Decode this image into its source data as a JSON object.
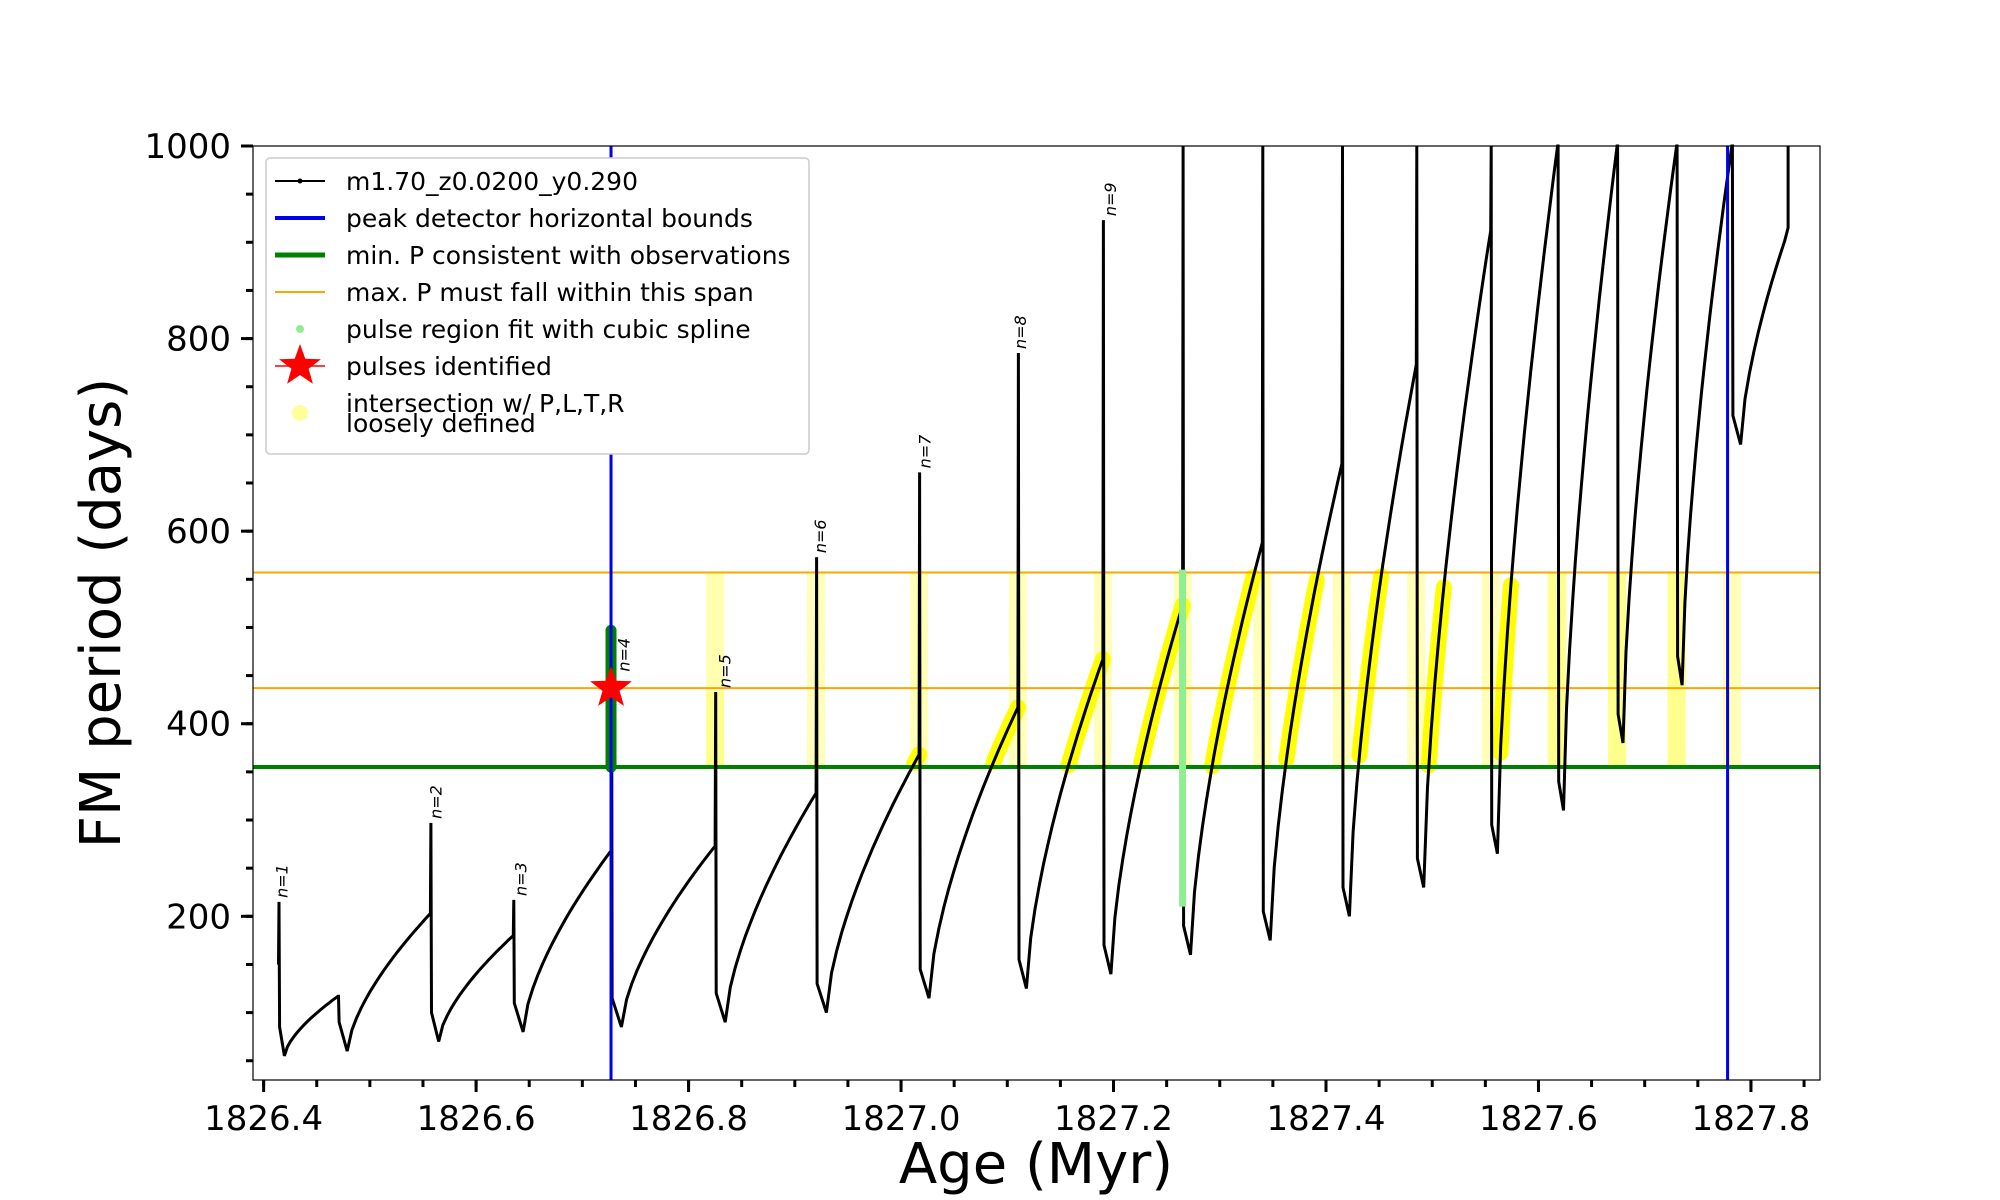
{
  "chart_data": {
    "type": "line",
    "xlabel": "Age (Myr)",
    "ylabel": "FM period (days)",
    "xlim": [
      1826.39,
      1827.865
    ],
    "ylim": [
      30,
      1000
    ],
    "xticks": [
      1826.4,
      1826.6,
      1826.8,
      1827.0,
      1827.2,
      1827.4,
      1827.6,
      1827.8
    ],
    "xtick_labels": [
      "1826.4",
      "1826.6",
      "1826.8",
      "1827.0",
      "1827.2",
      "1827.4",
      "1827.6",
      "1827.8"
    ],
    "yticks": [
      200,
      400,
      600,
      800,
      1000
    ],
    "ytick_labels": [
      "200",
      "400",
      "600",
      "800",
      "1000"
    ],
    "legend_position": "upper-left",
    "legend": [
      {
        "label": "m1.70_z0.0200_y0.290",
        "kind": "line-dots",
        "color": "#000000"
      },
      {
        "label": "peak detector horizontal bounds",
        "kind": "line",
        "color": "#0000ee"
      },
      {
        "label": "min. P consistent with observations",
        "kind": "line-thick",
        "color": "#008000"
      },
      {
        "label": "max. P must fall within this span",
        "kind": "line-thin",
        "color": "#ffa500"
      },
      {
        "label": "pulse region fit with cubic spline",
        "kind": "dot",
        "color": "#90ee90"
      },
      {
        "label": "pulses identified",
        "kind": "star",
        "color": "#ff0000"
      },
      {
        "label": "intersection w/ P,L,T,R",
        "kind": "circle",
        "color": "#ffff99"
      },
      {
        "label": "loosely defined",
        "kind": "continuation",
        "color": ""
      }
    ],
    "vertical_lines": [
      1826.727,
      1827.778
    ],
    "min_period_line": 355,
    "max_period_span": [
      437,
      557
    ],
    "pulse_labels": [
      {
        "text": "n=1",
        "x": 1826.415,
        "y": 215
      },
      {
        "text": "n=2",
        "x": 1826.56,
        "y": 297
      },
      {
        "text": "n=3",
        "x": 1826.64,
        "y": 217
      },
      {
        "text": "n=4",
        "x": 1826.737,
        "y": 450
      },
      {
        "text": "n=5",
        "x": 1826.832,
        "y": 433
      },
      {
        "text": "n=6",
        "x": 1826.922,
        "y": 573
      },
      {
        "text": "n=7",
        "x": 1827.02,
        "y": 661
      },
      {
        "text": "n=8",
        "x": 1827.11,
        "y": 785
      },
      {
        "text": "n=9",
        "x": 1827.195,
        "y": 923
      }
    ],
    "pulses": [
      {
        "t": 1826.414,
        "peak": 215,
        "pre": 150
      },
      {
        "t": 1826.47,
        "peak": 117,
        "pre": 117,
        "kind": "dip"
      },
      {
        "t": 1826.557,
        "peak": 297,
        "pre": 203
      },
      {
        "t": 1826.635,
        "peak": 217,
        "pre": 180
      },
      {
        "t": 1826.727,
        "peak": 497,
        "pre": 268
      },
      {
        "t": 1826.825,
        "peak": 433,
        "pre": 273
      },
      {
        "t": 1826.92,
        "peak": 573,
        "pre": 328
      },
      {
        "t": 1827.017,
        "peak": 661,
        "pre": 368
      },
      {
        "t": 1827.11,
        "peak": 785,
        "pre": 417
      },
      {
        "t": 1827.19,
        "peak": 923,
        "pre": 467
      },
      {
        "t": 1827.265,
        "peak": 1000,
        "pre": 523
      },
      {
        "t": 1827.34,
        "peak": 1000,
        "pre": 588
      },
      {
        "t": 1827.415,
        "peak": 1000,
        "pre": 670
      },
      {
        "t": 1827.485,
        "peak": 1000,
        "pre": 773
      },
      {
        "t": 1827.555,
        "peak": 1000,
        "pre": 912
      },
      {
        "t": 1827.618,
        "peak": 1000,
        "pre": 1000
      },
      {
        "t": 1827.674,
        "peak": 1000,
        "pre": 1000
      },
      {
        "t": 1827.73,
        "peak": 1000,
        "pre": 1000
      },
      {
        "t": 1827.782,
        "peak": 1000,
        "pre": 1000
      }
    ],
    "pulse_minima": [
      55,
      60,
      70,
      80,
      85,
      90,
      100,
      115,
      125,
      140,
      160,
      175,
      200,
      230,
      265,
      310,
      380,
      440,
      690
    ],
    "star": {
      "x": 1826.727,
      "y": 437
    }
  }
}
